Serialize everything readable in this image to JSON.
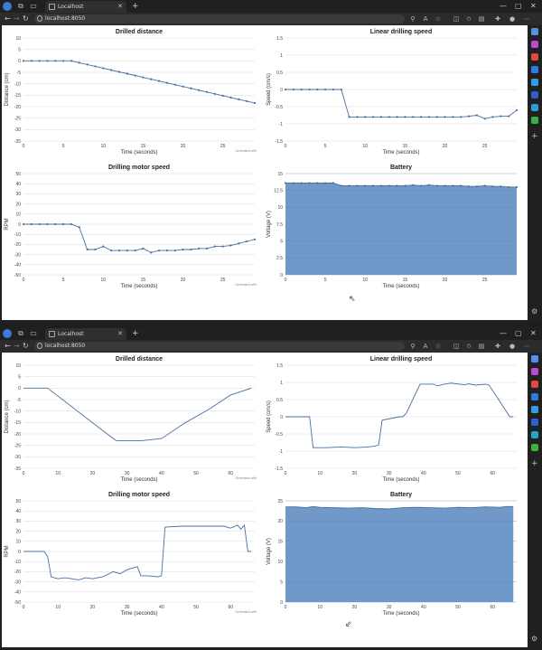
{
  "windows": [
    {
      "tab_title": "Localhost",
      "url": "localhost:8050",
      "charts": [
        {
          "id": "distance",
          "chart_data": {
            "type": "line",
            "title": "Drilled distance",
            "xlabel": "Time (seconds)",
            "ylabel": "Distance (cm)",
            "xlim": [
              0,
              29
            ],
            "ylim": [
              -35,
              10
            ],
            "xticks": [
              0,
              5,
              10,
              15,
              20,
              25
            ],
            "yticks": [
              10,
              5,
              0,
              -5,
              -10,
              -15,
              -20,
              -25,
              -30,
              -35
            ],
            "markers": true,
            "fill": false,
            "watermark": "Generated with",
            "x": [
              0,
              1,
              2,
              3,
              4,
              5,
              6,
              7,
              8,
              9,
              10,
              11,
              12,
              13,
              14,
              15,
              16,
              17,
              18,
              19,
              20,
              21,
              22,
              23,
              24,
              25,
              26,
              27,
              28,
              29
            ],
            "y": [
              0,
              0,
              0,
              0,
              0,
              0,
              0,
              -0.8,
              -1.6,
              -2.4,
              -3.2,
              -4.0,
              -4.8,
              -5.6,
              -6.4,
              -7.2,
              -8.0,
              -8.8,
              -9.6,
              -10.4,
              -11.2,
              -12.0,
              -12.8,
              -13.6,
              -14.4,
              -15.2,
              -16.0,
              -16.8,
              -17.6,
              -18.4
            ]
          }
        },
        {
          "id": "speed",
          "chart_data": {
            "type": "line",
            "title": "Linear drilling speed",
            "xlabel": "Time (seconds)",
            "ylabel": "Speed (cm/s)",
            "xlim": [
              0,
              29
            ],
            "ylim": [
              -1.5,
              1.5
            ],
            "xticks": [
              0,
              5,
              10,
              15,
              20,
              25
            ],
            "yticks": [
              1.5,
              1,
              0.5,
              0,
              -0.5,
              -1,
              -1.5
            ],
            "markers": true,
            "fill": false,
            "watermark": "",
            "x": [
              0,
              1,
              2,
              3,
              4,
              5,
              6,
              7,
              8,
              9,
              10,
              11,
              12,
              13,
              14,
              15,
              16,
              17,
              18,
              19,
              20,
              21,
              22,
              23,
              24,
              25,
              26,
              27,
              28,
              29
            ],
            "y": [
              0,
              0,
              0,
              0,
              0,
              0,
              0,
              0,
              -0.8,
              -0.8,
              -0.8,
              -0.8,
              -0.8,
              -0.8,
              -0.8,
              -0.8,
              -0.8,
              -0.8,
              -0.8,
              -0.8,
              -0.8,
              -0.8,
              -0.8,
              -0.78,
              -0.75,
              -0.85,
              -0.8,
              -0.78,
              -0.78,
              -0.6
            ]
          }
        },
        {
          "id": "motor",
          "chart_data": {
            "type": "line",
            "title": "Drilling motor speed",
            "xlabel": "Time (seconds)",
            "ylabel": "RPM",
            "xlim": [
              0,
              29
            ],
            "ylim": [
              -50,
              50
            ],
            "xticks": [
              0,
              5,
              10,
              15,
              20,
              25
            ],
            "yticks": [
              50,
              40,
              30,
              20,
              10,
              0,
              -10,
              -20,
              -30,
              -40,
              -50
            ],
            "markers": true,
            "fill": false,
            "watermark": "Generated with",
            "x": [
              0,
              1,
              2,
              3,
              4,
              5,
              6,
              7,
              8,
              9,
              10,
              11,
              12,
              13,
              14,
              15,
              16,
              17,
              18,
              19,
              20,
              21,
              22,
              23,
              24,
              25,
              26,
              27,
              28,
              29
            ],
            "y": [
              0,
              0,
              0,
              0,
              0,
              0,
              0,
              -3,
              -25,
              -25,
              -22,
              -26,
              -26,
              -26,
              -26,
              -24,
              -28,
              -26,
              -26,
              -26,
              -25,
              -25,
              -24,
              -24,
              -22,
              -22,
              -21,
              -19,
              -17,
              -15
            ]
          }
        },
        {
          "id": "battery",
          "chart_data": {
            "type": "area",
            "title": "Battery",
            "xlabel": "Time (seconds)",
            "ylabel": "Voltage (V)",
            "xlim": [
              0,
              29
            ],
            "ylim": [
              0,
              15
            ],
            "xticks": [
              0,
              5,
              10,
              15,
              20,
              25
            ],
            "yticks": [
              15,
              12.5,
              10,
              7.5,
              5,
              2.5,
              0
            ],
            "markers": true,
            "fill": true,
            "watermark": "",
            "x": [
              0,
              1,
              2,
              3,
              4,
              5,
              6,
              7,
              8,
              9,
              10,
              11,
              12,
              13,
              14,
              15,
              16,
              17,
              18,
              19,
              20,
              21,
              22,
              23,
              24,
              25,
              26,
              27,
              28,
              29
            ],
            "y": [
              13.6,
              13.6,
              13.6,
              13.6,
              13.6,
              13.6,
              13.6,
              13.2,
              13.2,
              13.2,
              13.2,
              13.2,
              13.2,
              13.2,
              13.2,
              13.2,
              13.3,
              13.2,
              13.3,
              13.2,
              13.2,
              13.2,
              13.2,
              13.1,
              13.1,
              13.2,
              13.1,
              13.1,
              13.0,
              13.0
            ]
          }
        }
      ]
    },
    {
      "tab_title": "Localhost",
      "url": "localhost:8050",
      "charts": [
        {
          "id": "distance",
          "chart_data": {
            "type": "line",
            "title": "Drilled distance",
            "xlabel": "Time (seconds)",
            "ylabel": "Distance (cm)",
            "xlim": [
              0,
              67
            ],
            "ylim": [
              -35,
              10
            ],
            "xticks": [
              0,
              10,
              20,
              30,
              40,
              50,
              60
            ],
            "yticks": [
              10,
              5,
              0,
              -5,
              -10,
              -15,
              -20,
              -25,
              -30,
              -35
            ],
            "markers": false,
            "fill": false,
            "watermark": "Generated with",
            "x": [
              0,
              7,
              26,
              27,
              33,
              34,
              40,
              47,
              54,
              60,
              66
            ],
            "y": [
              0,
              0,
              -22,
              -23,
              -23,
              -23,
              -22,
              -15,
              -9,
              -3,
              0
            ]
          }
        },
        {
          "id": "speed",
          "chart_data": {
            "type": "line",
            "title": "Linear drilling speed",
            "xlabel": "Time (seconds)",
            "ylabel": "Speed (cm/s)",
            "xlim": [
              0,
              67
            ],
            "ylim": [
              -1.5,
              1.5
            ],
            "xticks": [
              0,
              10,
              20,
              30,
              40,
              50,
              60
            ],
            "yticks": [
              1.5,
              1,
              0.5,
              0,
              -0.5,
              -1,
              -1.5
            ],
            "markers": false,
            "fill": false,
            "watermark": "",
            "x": [
              0,
              7,
              8,
              12,
              16,
              20,
              24,
              26,
              27,
              28,
              33,
              34,
              35,
              39,
              43,
              44,
              46,
              48,
              52,
              53,
              55,
              58,
              59,
              65,
              66
            ],
            "y": [
              0,
              0,
              -0.9,
              -0.9,
              -0.88,
              -0.9,
              -0.88,
              -0.85,
              -0.82,
              -0.1,
              0,
              0,
              0.1,
              0.95,
              0.95,
              0.9,
              0.95,
              0.98,
              0.93,
              0.96,
              0.92,
              0.95,
              0.92,
              0,
              0
            ]
          }
        },
        {
          "id": "motor",
          "chart_data": {
            "type": "line",
            "title": "Drilling motor speed",
            "xlabel": "Time (seconds)",
            "ylabel": "RPM",
            "xlim": [
              0,
              67
            ],
            "ylim": [
              -50,
              50
            ],
            "xticks": [
              0,
              10,
              20,
              30,
              40,
              50,
              60
            ],
            "yticks": [
              50,
              40,
              30,
              20,
              10,
              0,
              -10,
              -20,
              -30,
              -40,
              -50
            ],
            "markers": false,
            "fill": false,
            "watermark": "Generated with",
            "x": [
              0,
              6,
              7,
              8,
              10,
              12,
              14,
              16,
              18,
              20,
              23,
              26,
              28,
              30,
              33,
              34,
              36,
              39,
              40,
              41,
              46,
              52,
              58,
              60,
              62,
              63,
              64,
              65,
              66
            ],
            "y": [
              0,
              0,
              -5,
              -25,
              -27,
              -26,
              -27,
              -28,
              -26,
              -27,
              -25,
              -20,
              -22,
              -18,
              -15,
              -24,
              -24,
              -25,
              -24,
              24,
              25,
              25,
              25,
              23,
              26,
              22,
              26,
              0,
              0
            ]
          }
        },
        {
          "id": "battery",
          "chart_data": {
            "type": "area",
            "title": "Battery",
            "xlabel": "Time (seconds)",
            "ylabel": "Voltage (V)",
            "xlim": [
              0,
              67
            ],
            "ylim": [
              0,
              25
            ],
            "xticks": [
              0,
              10,
              20,
              30,
              40,
              50,
              60
            ],
            "yticks": [
              25,
              20,
              15,
              10,
              5,
              0
            ],
            "markers": false,
            "fill": true,
            "watermark": "",
            "x": [
              0,
              3,
              6,
              8,
              10,
              14,
              18,
              22,
              26,
              30,
              34,
              38,
              42,
              46,
              50,
              54,
              58,
              62,
              64,
              66
            ],
            "y": [
              23.5,
              23.5,
              23.3,
              23.6,
              23.4,
              23.3,
              23.2,
              23.3,
              23.1,
              23.0,
              23.3,
              23.4,
              23.3,
              23.2,
              23.4,
              23.3,
              23.5,
              23.4,
              23.6,
              23.6
            ]
          }
        }
      ]
    }
  ]
}
